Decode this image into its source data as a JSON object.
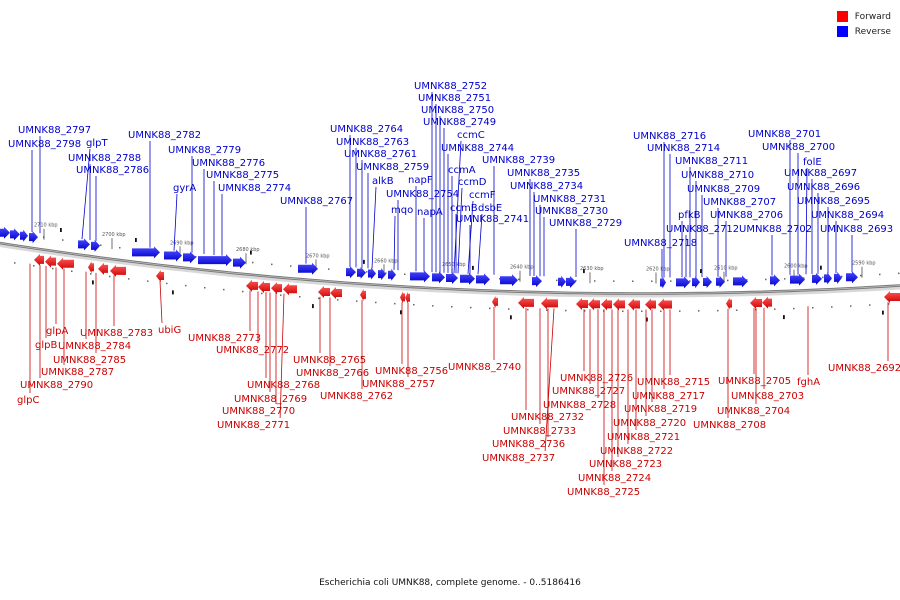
{
  "legend": {
    "forward_label": "Forward",
    "reverse_label": "Reverse",
    "forward_color": "#ff0000",
    "reverse_color": "#0000ff"
  },
  "caption": "Escherichia coli UMNK88, complete genome. - 0..5186416",
  "scale": {
    "unit_label": "kbp",
    "ticks": [
      2710,
      2700,
      2690,
      2680,
      2670,
      2660,
      2650,
      2640,
      2630,
      2620,
      2610,
      2600,
      2590
    ]
  },
  "genes": {
    "reverse": [
      "UMNK88_2797",
      "UMNK88_2798",
      "glpT",
      "UMNK88_2788",
      "UMNK88_2786",
      "UMNK88_2782",
      "UMNK88_2779",
      "UMNK88_2776",
      "gyrA",
      "UMNK88_2775",
      "UMNK88_2774",
      "UMNK88_2767",
      "UMNK88_2764",
      "UMNK88_2763",
      "UMNK88_2761",
      "UMNK88_2759",
      "alkB",
      "napF",
      "UMNK88_2754",
      "mqo",
      "napA",
      "UMNK88_2752",
      "UMNK88_2751",
      "UMNK88_2750",
      "UMNK88_2749",
      "ccmC",
      "UMNK88_2744",
      "ccmA",
      "ccmD",
      "UMNK88_2739",
      "ccmF",
      "ccmB",
      "dsbE",
      "UMNK88_2741",
      "UMNK88_2735",
      "UMNK88_2734",
      "UMNK88_2731",
      "UMNK88_2730",
      "UMNK88_2729",
      "UMNK88_2716",
      "UMNK88_2714",
      "UMNK88_2711",
      "UMNK88_2710",
      "UMNK88_2709",
      "pfkB",
      "UMNK88_2712",
      "UMNK88_2718",
      "UMNK88_2707",
      "UMNK88_2706",
      "UMNK88_2702",
      "UMNK88_2701",
      "UMNK88_2700",
      "folE",
      "UMNK88_2697",
      "UMNK88_2696",
      "UMNK88_2695",
      "UMNK88_2694",
      "UMNK88_2693"
    ],
    "forward": [
      "glpA",
      "glpB",
      "UMNK88_2790",
      "glpC",
      "UMNK88_2784",
      "UMNK88_2783",
      "UMNK88_2785",
      "UMNK88_2787",
      "ubiG",
      "UMNK88_2773",
      "UMNK88_2772",
      "UMNK88_2768",
      "UMNK88_2769",
      "UMNK88_2770",
      "UMNK88_2771",
      "UMNK88_2765",
      "UMNK88_2766",
      "UMNK88_2762",
      "UMNK88_2756",
      "UMNK88_2757",
      "UMNK88_2740",
      "UMNK88_2726",
      "UMNK88_2727",
      "UMNK88_2728",
      "UMNK88_2732",
      "UMNK88_2733",
      "UMNK88_2736",
      "UMNK88_2737",
      "UMNK88_2715",
      "UMNK88_2717",
      "UMNK88_2719",
      "UMNK88_2720",
      "UMNK88_2721",
      "UMNK88_2722",
      "UMNK88_2723",
      "UMNK88_2724",
      "UMNK88_2725",
      "UMNK88_2705",
      "UMNK88_2703",
      "UMNK88_2704",
      "UMNK88_2708",
      "fghA",
      "UMNK88_2692"
    ]
  }
}
